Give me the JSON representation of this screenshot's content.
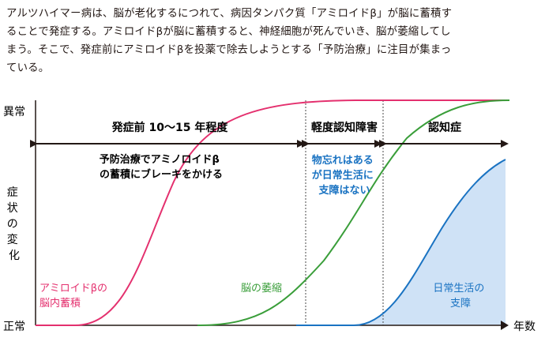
{
  "paragraph": {
    "lines": [
      "アルツハイマー病は、脳が老化するにつれて、病因タンパク質「アミロイドβ」が脳に蓄積す",
      "ることで発症する。アミロイドβが脳に蓄積すると、神経細胞が死んでいき、脳が萎縮してし",
      "まう。そこで、発症前にアミロイドβを投薬で除去しようとする「予防治療」に注目が集まっ",
      "ている。"
    ]
  },
  "chart_data": {
    "type": "line",
    "y_axis": {
      "top_label": "異常",
      "bottom_label": "正常",
      "title": "症状の変化"
    },
    "x_axis": {
      "label": "年数"
    },
    "phases": [
      {
        "label": "発症前 10〜15 年程度"
      },
      {
        "label": "軽度認知障害"
      },
      {
        "label": "認知症"
      }
    ],
    "phase_notes": [
      {
        "lines": [
          "予防治療でアミノロイドβ",
          "の蓄積にブレーキをかける"
        ]
      },
      {
        "lines": [
          "物忘れはある",
          "が日常生活に",
          "支障はない"
        ]
      }
    ],
    "series": [
      {
        "name": "アミロイドβの脳内蓄積",
        "label_lines": [
          "アミロイドβの",
          "脳内蓄積"
        ],
        "color": "#e4306e"
      },
      {
        "name": "脳の萎縮",
        "label_lines": [
          "脳の萎縮"
        ],
        "color": "#3a9e3a"
      },
      {
        "name": "日常生活の支障",
        "label_lines": [
          "日常生活の",
          "支障"
        ],
        "color": "#1a73c2",
        "fill": "#cfe2f6"
      }
    ]
  }
}
